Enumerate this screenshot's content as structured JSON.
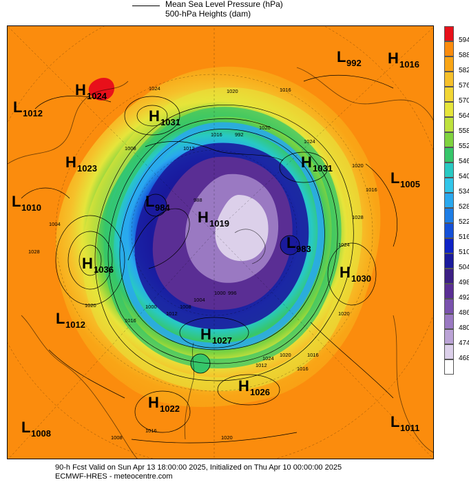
{
  "legend": {
    "line1": "Mean Sea Level Pressure (hPa)",
    "line2": "500-hPa Heights (dam)"
  },
  "colorbar": {
    "levels": [
      "594",
      "588",
      "582",
      "576",
      "570",
      "564",
      "558",
      "552",
      "546",
      "540",
      "534",
      "528",
      "522",
      "516",
      "510",
      "504",
      "498",
      "492",
      "486",
      "480",
      "474",
      "468"
    ],
    "colors": [
      "#e8101a",
      "#fb8c0d",
      "#f9a516",
      "#f6c02a",
      "#f2d634",
      "#e6e53b",
      "#bee23d",
      "#7fd33f",
      "#36c66a",
      "#28c9c3",
      "#31c6ea",
      "#29a8ef",
      "#1d7de6",
      "#1450d8",
      "#0e22c6",
      "#1a1a9c",
      "#3c1f84",
      "#5a2e94",
      "#7a52ad",
      "#9a79c2",
      "#bba3d6",
      "#dcd0ea",
      "#ffffff"
    ]
  },
  "systems": [
    {
      "type": "H",
      "value": "1024"
    },
    {
      "type": "L",
      "value": "1012"
    },
    {
      "type": "H",
      "value": "1031"
    },
    {
      "type": "H",
      "value": "1023"
    },
    {
      "type": "L",
      "value": "1010"
    },
    {
      "type": "H",
      "value": "1036"
    },
    {
      "type": "L",
      "value": "1012"
    },
    {
      "type": "L",
      "value": "984"
    },
    {
      "type": "H",
      "value": "1019"
    },
    {
      "type": "L",
      "value": "992"
    },
    {
      "type": "H",
      "value": "1016"
    },
    {
      "type": "H",
      "value": "1031"
    },
    {
      "type": "L",
      "value": "1005"
    },
    {
      "type": "L",
      "value": "983"
    },
    {
      "type": "H",
      "value": "1030"
    },
    {
      "type": "H",
      "value": "1027"
    },
    {
      "type": "H",
      "value": "1026"
    },
    {
      "type": "H",
      "value": "1022"
    },
    {
      "type": "L",
      "value": "1008"
    },
    {
      "type": "L",
      "value": "1011"
    }
  ],
  "isobar_labels": [
    "1024",
    "1020",
    "1016",
    "1012",
    "1008",
    "1004",
    "1000",
    "996",
    "992",
    "988",
    "1016",
    "1020",
    "1024",
    "1020",
    "1016",
    "1028",
    "1020",
    "1016",
    "1012",
    "1008",
    "1004",
    "1000",
    "1028",
    "1024",
    "1020",
    "1016",
    "1020",
    "1024",
    "1016",
    "1020",
    "1012",
    "1016",
    "1008"
  ],
  "footer": {
    "line1": "90-h Fcst Valid on Sun Apr 13 18:00:00 2025, Initialized on Thu Apr 10 00:00:00 2025",
    "line2": "ECMWF-HRES - meteocentre.com"
  }
}
